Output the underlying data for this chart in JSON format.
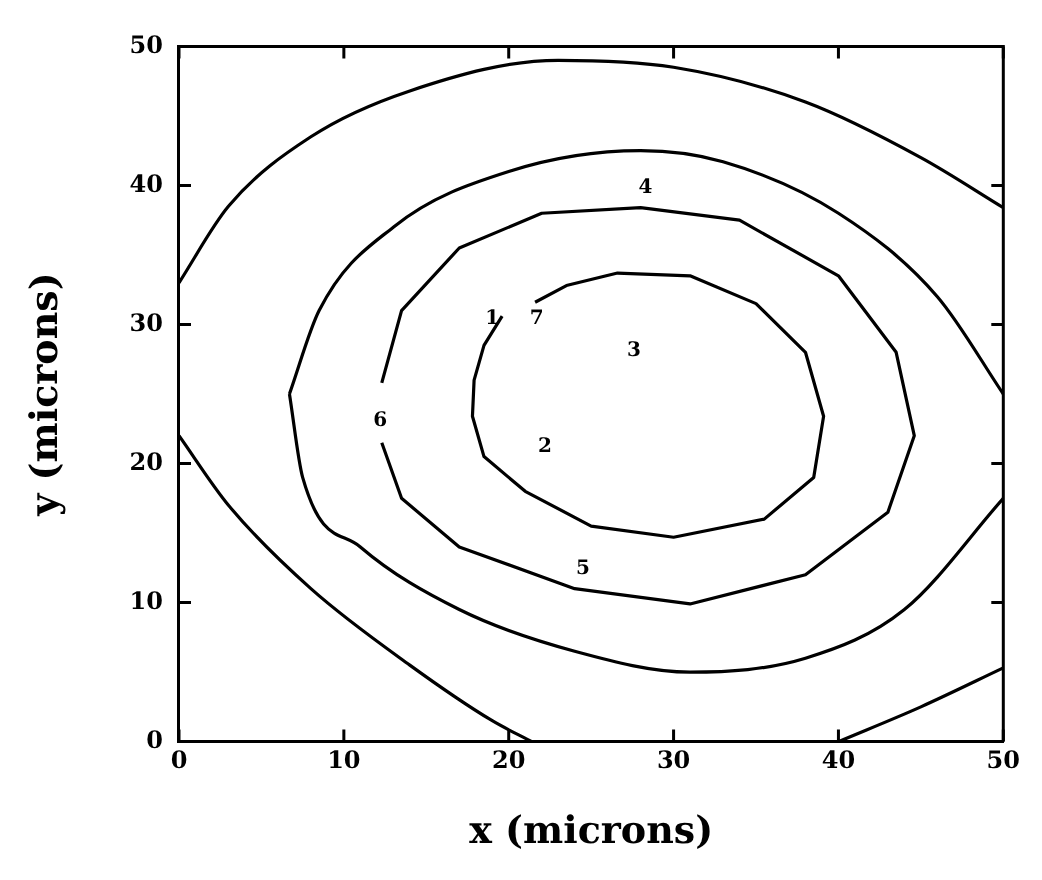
{
  "chart_data": {
    "type": "line",
    "xlabel": "x (microns)",
    "ylabel": "y (microns)",
    "xlim": [
      0,
      50
    ],
    "ylim": [
      0,
      50
    ],
    "xticks": [
      0,
      10,
      20,
      30,
      40,
      50
    ],
    "yticks": [
      0,
      10,
      20,
      30,
      40,
      50
    ],
    "grid": false,
    "legend": false,
    "marker": "none",
    "line_style": "solid",
    "series": [
      {
        "color": "#000000",
        "x": [
          0,
          3,
          8,
          14,
          23,
          30,
          38,
          45,
          50
        ],
        "values": [
          33,
          38.5,
          43.5,
          46.8,
          49,
          48.5,
          46,
          42,
          38.4
        ]
      },
      {
        "color": "#000000",
        "x": [
          0,
          3,
          8,
          14,
          19,
          21.4
        ],
        "values": [
          22,
          17,
          11,
          5.5,
          1.5,
          0
        ]
      },
      {
        "color": "#000000",
        "x": [
          40,
          45,
          50
        ],
        "values": [
          0,
          2.5,
          5.3
        ]
      },
      {
        "color": "#000000",
        "x": [
          6.7,
          8.5,
          13,
          20,
          28,
          33,
          40,
          46,
          50
        ],
        "values": [
          25,
          31,
          37,
          41,
          42.5,
          41.7,
          38,
          32,
          25
        ]
      },
      {
        "color": "#000000",
        "x": [
          6.7,
          7.5,
          11,
          17,
          24,
          31,
          38,
          44,
          50
        ],
        "values": [
          25,
          19,
          14,
          9.5,
          6.5,
          5,
          6,
          9.5,
          17.5
        ]
      },
      {
        "color": "#000000",
        "x": [
          12.3,
          13.5,
          17,
          24,
          31,
          38,
          43,
          44.6,
          43.5,
          40,
          34,
          28,
          22,
          17,
          13.5,
          12.3
        ],
        "values": [
          21.5,
          17.5,
          14,
          11,
          9.9,
          12,
          16.5,
          22,
          28,
          33.5,
          37.5,
          38.4,
          38,
          35.5,
          31,
          25.8
        ]
      },
      {
        "color": "#000000",
        "x": [
          19.6,
          18.5,
          17.9,
          17.8,
          18.5,
          21,
          25,
          30,
          35.5,
          38.5,
          39.1,
          38,
          35,
          31,
          26.6,
          23.5,
          21.6
        ],
        "values": [
          30.6,
          28.5,
          26,
          23.4,
          20.5,
          18,
          15.5,
          14.7,
          16,
          19,
          23.4,
          28,
          31.5,
          33.5,
          33.7,
          32.8,
          31.6
        ]
      }
    ],
    "annotations": [
      "1",
      "7",
      "3",
      "4",
      "6",
      "2",
      "5"
    ]
  }
}
